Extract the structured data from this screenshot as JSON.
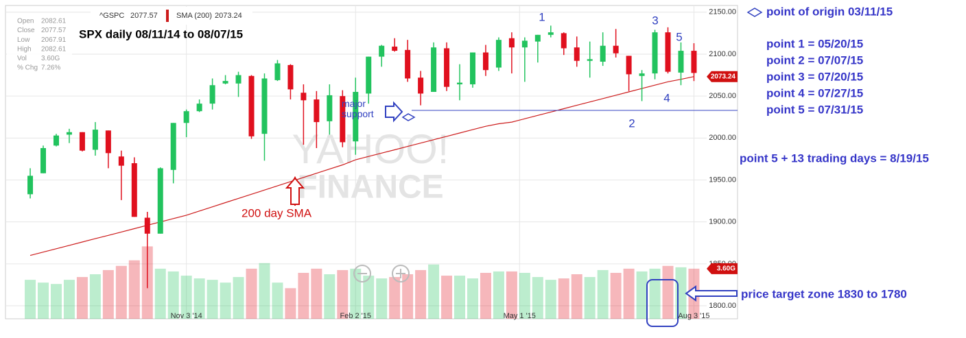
{
  "chart_data": {
    "type": "candlestick",
    "title": "SPX daily 08/11/14 to 08/07/15",
    "info": [
      {
        "label": "Open",
        "value": "2082.61"
      },
      {
        "label": "Close",
        "value": "2077.57"
      },
      {
        "label": "Low",
        "value": "2067.91"
      },
      {
        "label": "High",
        "value": "2082.61"
      },
      {
        "label": "Vol",
        "value": "3.60G"
      },
      {
        "label": "% Chg",
        "value": "7.26%"
      }
    ],
    "price_name": "^GSPC",
    "up_color": "#22c35e",
    "down_color": "#e0101e",
    "open": [
      1933,
      1958,
      1991,
      2004,
      2007,
      1986,
      2009,
      1978,
      1970,
      1905,
      1886,
      1962,
      2018,
      2032,
      2041,
      2065,
      2065,
      2074,
      2005,
      2069,
      2087,
      2054,
      2046,
      2020,
      2050,
      1996,
      2053,
      2097,
      2109,
      2105,
      2072,
      2055,
      2107,
      2064,
      2064,
      2102,
      2084,
      2119,
      2108,
      2115,
      2123,
      2125,
      2108,
      2092,
      2091,
      2110,
      2098,
      2074,
      2077,
      2126,
      2078,
      2104
    ],
    "high": [
      1964,
      1991,
      2005,
      2011,
      2007,
      2019,
      2009,
      1985,
      1977,
      1912,
      1965,
      2018,
      2034,
      2046,
      2071,
      2075,
      2079,
      2075,
      2077,
      2093,
      2088,
      2064,
      2056,
      2064,
      2057,
      2072,
      2097,
      2111,
      2119,
      2117,
      2080,
      2114,
      2114,
      2088,
      2102,
      2111,
      2120,
      2126,
      2120,
      2123,
      2134,
      2126,
      2121,
      2115,
      2126,
      2130,
      2098,
      2081,
      2129,
      2132,
      2114,
      2113
    ],
    "low": [
      1928,
      1958,
      1990,
      1994,
      1984,
      1979,
      1964,
      1926,
      1906,
      1821,
      1886,
      1946,
      2001,
      2031,
      2034,
      2064,
      2049,
      1999,
      1973,
      2068,
      2046,
      1992,
      1988,
      2004,
      1989,
      1980,
      2041,
      2085,
      2103,
      2067,
      2039,
      2055,
      2056,
      2045,
      2060,
      2074,
      2080,
      2077,
      2067,
      2090,
      2120,
      2099,
      2085,
      2072,
      2086,
      2096,
      2056,
      2044,
      2070,
      2077,
      2063,
      2067.91
    ],
    "close": [
      1955,
      1988,
      2003,
      2007,
      1985,
      2010,
      1982,
      1967,
      1906,
      1886,
      1964,
      2018,
      2032,
      2041,
      2063,
      2068,
      2075,
      2002,
      2071,
      2089,
      2058,
      2045,
      2019,
      2051,
      1995,
      2055,
      2097,
      2110,
      2104,
      2071,
      2053,
      2108,
      2061,
      2066,
      2102,
      2081,
      2117,
      2108,
      2116,
      2123,
      2126,
      2107,
      2092,
      2094,
      2110,
      2101,
      2076,
      2077,
      2126,
      2079,
      2104,
      2077.57
    ],
    "sma": {
      "name": "SMA (200)",
      "color": "#cc1a1a",
      "values": [
        1860,
        1864,
        1868,
        1872,
        1876,
        1880,
        1884,
        1888,
        1892,
        1896,
        1900,
        1904,
        1908,
        1913,
        1918,
        1923,
        1928,
        1933,
        1938,
        1943,
        1948,
        1953,
        1958,
        1963,
        1968,
        1974,
        1978,
        1982,
        1986,
        1990,
        1994,
        1998,
        2002,
        2006,
        2010,
        2014,
        2017,
        2019,
        2023,
        2027,
        2031,
        2035,
        2039,
        2043,
        2047,
        2051,
        2055,
        2059,
        2063,
        2067,
        2070,
        2073.24
      ]
    },
    "volume": [
      2.8,
      2.6,
      2.5,
      2.8,
      3.0,
      3.2,
      3.5,
      3.8,
      4.2,
      5.2,
      3.6,
      3.4,
      3.1,
      2.9,
      2.8,
      2.6,
      3.0,
      3.6,
      4.0,
      2.6,
      2.2,
      3.3,
      3.6,
      3.2,
      3.5,
      3.6,
      3.1,
      2.9,
      3.0,
      3.2,
      3.5,
      3.9,
      3.1,
      3.1,
      2.9,
      3.3,
      3.4,
      3.4,
      3.3,
      3.0,
      2.8,
      2.9,
      3.2,
      3.0,
      3.5,
      3.3,
      3.6,
      3.4,
      3.6,
      3.8,
      3.7,
      3.6
    ],
    "xlim": [
      -1.9,
      54.35
    ],
    "xticks": [
      {
        "value": 12,
        "label": "Nov 3 '14"
      },
      {
        "value": 25,
        "label": "Feb 2 '15"
      },
      {
        "value": 37.6,
        "label": "May 1 '15"
      },
      {
        "value": 51,
        "label": "Aug 3 '15"
      }
    ],
    "ylim": [
      1784.5,
      2158
    ],
    "yticks": [
      {
        "value": 1800,
        "label": "1800.00"
      },
      {
        "value": 1850,
        "label": "1850.00"
      },
      {
        "value": 1900,
        "label": "1900.00"
      },
      {
        "value": 1950,
        "label": "1950.00"
      },
      {
        "value": 2000,
        "label": "2000.00"
      },
      {
        "value": 2050,
        "label": "2050.00"
      },
      {
        "value": 2100,
        "label": "2100.00"
      },
      {
        "value": 2150,
        "label": "2150.00"
      }
    ],
    "y2lim": [
      0,
      22.5
    ],
    "grid": true,
    "support_level": 2033,
    "support_label": "major support",
    "sma_label": "200 day SMA",
    "watermark": [
      "YAHOO!",
      "FINANCE"
    ],
    "wave_labels": [
      "1",
      "2",
      "3",
      "4",
      "5"
    ],
    "notes": [
      "point of origin 03/11/15",
      "point 1 = 05/20/15",
      "point 2 = 07/07/15",
      "point 3 = 07/20/15",
      "point 4 = 07/27/15",
      "point 5 = 07/31/15",
      "point 5 + 13 trading days = 8/19/15",
      "price target zone 1830 to 1780"
    ]
  }
}
